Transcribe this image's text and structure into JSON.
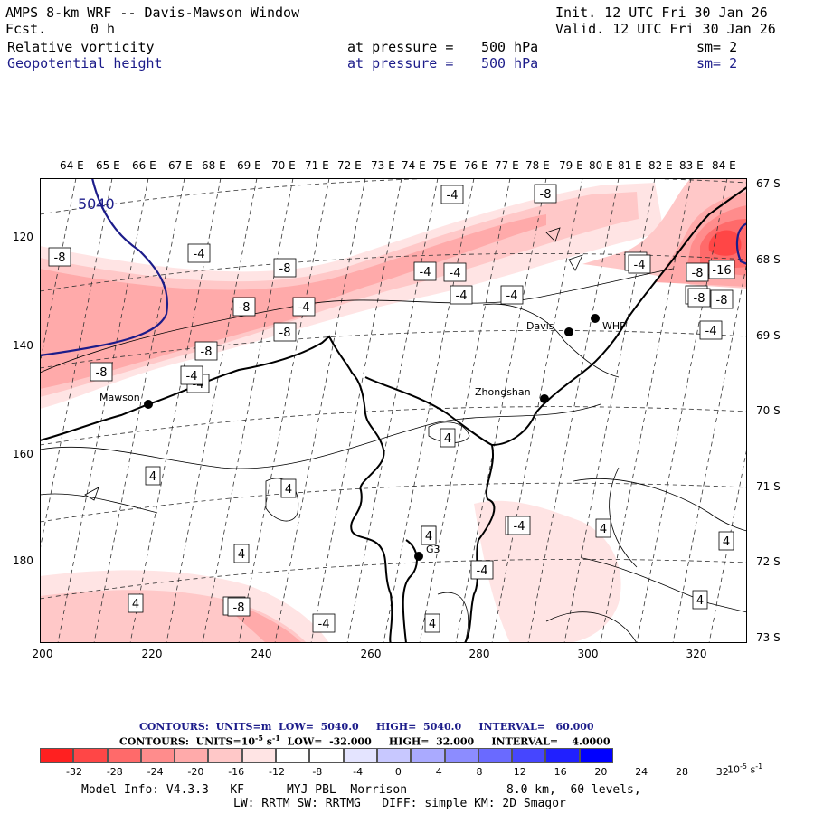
{
  "header": {
    "title": "AMPS 8-km WRF -- Davis-Mawson Window",
    "fcst_label": "Fcst.",
    "fcst_value": "0 h",
    "init": "Init. 12 UTC Fri 30 Jan 26",
    "valid": "Valid. 12 UTC Fri 30 Jan 26"
  },
  "fields": [
    {
      "name": "Relative vorticity",
      "level_label": "at pressure =",
      "level": "500 hPa",
      "smoothing": "sm= 2",
      "color": "#000000"
    },
    {
      "name": "Geopotential height",
      "level_label": "at pressure =",
      "level": "500 hPa",
      "smoothing": "sm= 2",
      "color": "#1c1c8a"
    }
  ],
  "map": {
    "lon_labels": [
      "64 E",
      "65 E",
      "66 E",
      "67 E",
      "68 E",
      "69 E",
      "70 E",
      "71 E",
      "72 E",
      "73 E",
      "74 E",
      "75 E",
      "76 E",
      "77 E",
      "78 E",
      "79 E",
      "80 E",
      "81 E",
      "82 E",
      "83 E",
      "84 E"
    ],
    "lat_labels": [
      "67 S",
      "68 S",
      "69 S",
      "70 S",
      "71 S",
      "72 S",
      "73 S"
    ],
    "y_ticks": [
      "120",
      "140",
      "160",
      "180"
    ],
    "x_ticks": [
      "200",
      "220",
      "240",
      "260",
      "280",
      "300",
      "320"
    ],
    "stations": [
      {
        "name": "Mawson"
      },
      {
        "name": "Davis"
      },
      {
        "name": "WHP"
      },
      {
        "name": "Zhongshan"
      },
      {
        "name": "G3"
      }
    ],
    "contour_labels": [
      "-8",
      "-4",
      "-8",
      "-8",
      "-8",
      "-4",
      "-4",
      "-4",
      "-4",
      "-4",
      "-8",
      "-8",
      "-8",
      "-4",
      "-8",
      "-4",
      "-4",
      "-4",
      "-16",
      "-8",
      "-8",
      "-4",
      "-4",
      "-4",
      "4",
      "4",
      "4",
      "4",
      "4",
      "-4",
      "-4",
      "4",
      "4",
      "4",
      "4",
      "-4",
      "4",
      "-4",
      "-8",
      "-4",
      "4"
    ],
    "height_label": "5040"
  },
  "contour_info": {
    "line1": {
      "contours": "CONTOURS:",
      "units": "UNITS=m",
      "low": "LOW=  5040.0",
      "high": "HIGH=  5040.0",
      "interval": "INTERVAL=   60.000"
    },
    "line2": {
      "contours": "CONTOURS:",
      "units": "UNITS=10",
      "units_exp": "-5",
      "units_tail": "s",
      "units_tail_exp": "-1",
      "low": "LOW=  -32.000",
      "high": "HIGH=  32.000",
      "interval": "INTERVAL=    4.0000"
    },
    "line1_color": "#1c1c8a"
  },
  "colorbar": {
    "colors": [
      "#ff2020",
      "#ff4646",
      "#ff6a6a",
      "#ff8c8c",
      "#ffaaaa",
      "#ffc8c8",
      "#ffe4e4",
      "#ffffff",
      "#ffffff",
      "#e4e4ff",
      "#c8c8ff",
      "#aaaaff",
      "#8c8cff",
      "#6a6aff",
      "#4646ff",
      "#2020ff",
      "#0000ff"
    ],
    "labels": [
      "-32",
      "-28",
      "-24",
      "-20",
      "-16",
      "-12",
      "-8",
      "-4",
      "0",
      "4",
      "8",
      "12",
      "16",
      "20",
      "24",
      "28",
      "32"
    ],
    "unit": "10",
    "unit_exp": "-5",
    "unit_tail": "s",
    "unit_tail_exp": "-1"
  },
  "model_info": {
    "line1_a": "Model Info: V4.3.3   KF      MYJ PBL  Morrison",
    "line1_b": "8.0 km,  60 levels,",
    "line2": "LW: RRTM SW: RRTMG   DIFF: simple KM: 2D Smagor"
  }
}
